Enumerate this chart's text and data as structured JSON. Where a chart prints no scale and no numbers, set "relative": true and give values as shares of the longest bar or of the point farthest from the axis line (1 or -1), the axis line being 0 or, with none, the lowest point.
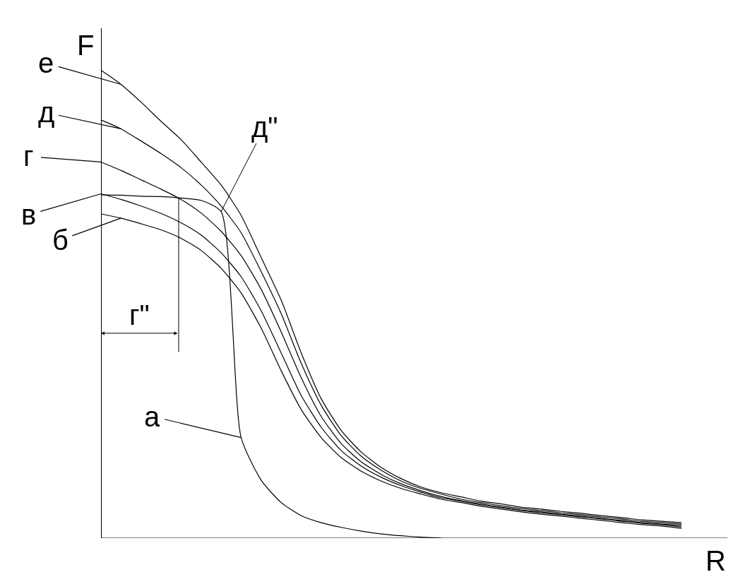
{
  "chart_data": {
    "type": "line",
    "relative": true,
    "xlabel": "R",
    "ylabel": "F",
    "legend": "left",
    "marker": "none",
    "line_style": "solid",
    "categories": [
      null,
      null,
      null,
      null,
      null,
      null,
      null,
      null,
      null,
      null,
      null,
      null,
      null,
      null,
      null,
      null,
      null,
      null,
      null,
      null,
      null,
      null,
      null,
      null,
      null,
      null,
      null,
      null,
      null,
      null
    ],
    "series": [
      {
        "name": "а",
        "color": "#000000",
        "values": [
          0.734,
          0.733,
          0.731,
          0.73,
          0.727,
          0.722,
          0.698,
          0.215,
          0.124,
          0.076,
          0.048,
          0.033,
          0.023,
          0.015,
          0.009,
          0.005,
          0.002,
          0.0,
          null,
          null,
          null,
          null,
          null,
          null,
          null,
          null,
          null,
          null,
          null,
          null
        ]
      },
      {
        "name": "б",
        "color": "#000000",
        "values": [
          0.693,
          0.684,
          0.672,
          0.659,
          0.641,
          0.615,
          0.577,
          0.524,
          0.449,
          0.358,
          0.275,
          0.215,
          0.172,
          0.143,
          0.122,
          0.106,
          0.094,
          0.083,
          0.076,
          0.068,
          0.062,
          0.056,
          0.051,
          0.047,
          0.042,
          0.038,
          0.033,
          0.029,
          0.026,
          0.021
        ]
      },
      {
        "name": "в",
        "color": "#000000",
        "values": [
          0.736,
          0.724,
          0.71,
          0.694,
          0.674,
          0.648,
          0.61,
          0.559,
          0.486,
          0.396,
          0.305,
          0.237,
          0.187,
          0.154,
          0.13,
          0.112,
          0.098,
          0.086,
          0.079,
          0.071,
          0.065,
          0.059,
          0.054,
          0.05,
          0.045,
          0.041,
          0.036,
          0.032,
          0.029,
          0.024
        ]
      },
      {
        "name": "г",
        "color": "#000000",
        "values": [
          0.804,
          0.786,
          0.766,
          0.746,
          0.724,
          0.695,
          0.656,
          0.604,
          0.532,
          0.441,
          0.343,
          0.26,
          0.202,
          0.163,
          0.136,
          0.116,
          0.101,
          0.089,
          0.08,
          0.073,
          0.066,
          0.06,
          0.056,
          0.051,
          0.047,
          0.042,
          0.038,
          0.033,
          0.03,
          0.027
        ]
      },
      {
        "name": "д",
        "color": "#000000",
        "values": [
          0.894,
          0.875,
          0.849,
          0.822,
          0.792,
          0.755,
          0.71,
          0.653,
          0.57,
          0.48,
          0.374,
          0.284,
          0.219,
          0.175,
          0.145,
          0.122,
          0.106,
          0.094,
          0.083,
          0.076,
          0.069,
          0.063,
          0.059,
          0.054,
          0.05,
          0.045,
          0.041,
          0.036,
          0.033,
          0.03
        ]
      },
      {
        "name": "е",
        "color": "#000000",
        "values": [
          1.0,
          0.97,
          0.932,
          0.891,
          0.852,
          0.804,
          0.755,
          0.69,
          0.6,
          0.509,
          0.396,
          0.298,
          0.23,
          0.184,
          0.151,
          0.127,
          0.109,
          0.097,
          0.088,
          0.079,
          0.073,
          0.066,
          0.062,
          0.057,
          0.053,
          0.048,
          0.044,
          0.039,
          0.036,
          0.033
        ]
      }
    ],
    "annotations": [
      "д\"",
      "г\""
    ]
  }
}
